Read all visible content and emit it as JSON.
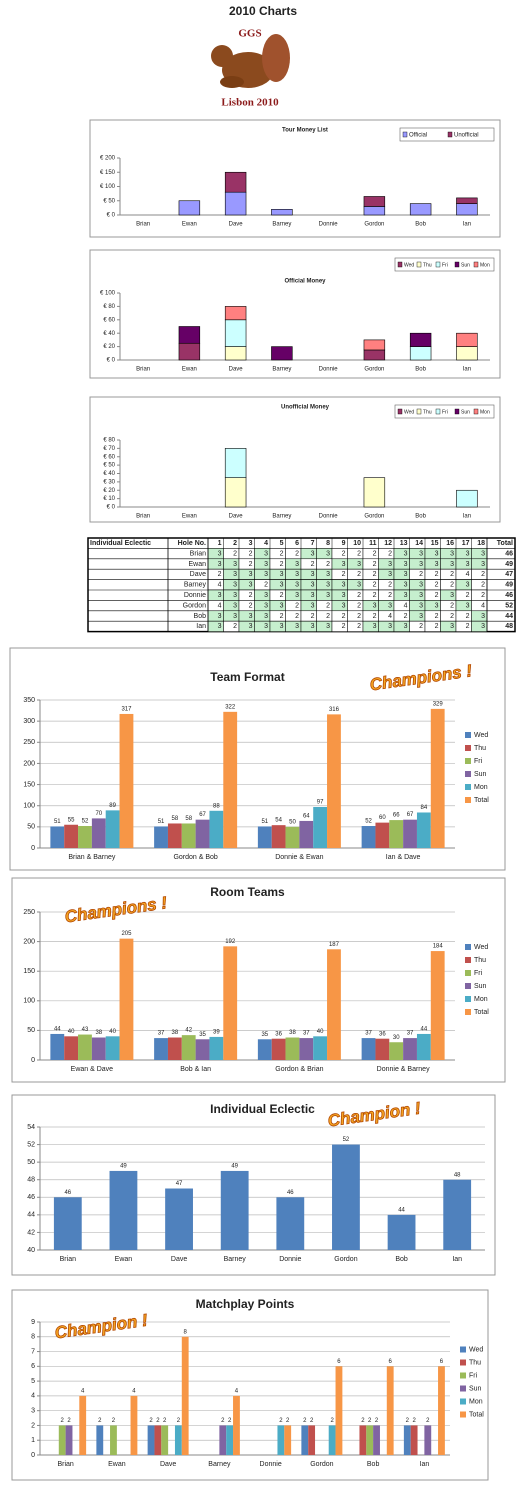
{
  "header": {
    "title": "2010 Charts",
    "logo_top": "GGS",
    "logo_bottom": "Lisbon 2010"
  },
  "chart_data": [
    {
      "type": "stacked",
      "title": "Tour Money List",
      "categories": [
        "Brian",
        "Ewan",
        "Dave",
        "Barney",
        "Donnie",
        "Gordon",
        "Bob",
        "Ian"
      ],
      "series": [
        {
          "name": "Official",
          "color": "#9999ff",
          "values": [
            0,
            50,
            80,
            20,
            0,
            30,
            40,
            40
          ]
        },
        {
          "name": "Unofficial",
          "color": "#993366",
          "values": [
            0,
            0,
            70,
            0,
            0,
            35,
            0,
            20
          ]
        }
      ],
      "ylim": [
        0,
        200
      ],
      "yticks": [
        {
          "value": 0,
          "label": "€ 0"
        },
        {
          "value": 50,
          "label": "€ 50"
        },
        {
          "value": 100,
          "label": "€ 100"
        },
        {
          "value": 150,
          "label": "€ 150"
        },
        {
          "value": 200,
          "label": "€ 200"
        }
      ],
      "grid": false,
      "legend": "top"
    },
    {
      "type": "stacked",
      "title": "Official Money",
      "categories": [
        "Brian",
        "Ewan",
        "Dave",
        "Barney",
        "Donnie",
        "Gordon",
        "Bob",
        "Ian"
      ],
      "series": [
        {
          "name": "Wed",
          "color": "#993366",
          "values": [
            0,
            25,
            0,
            0,
            0,
            15,
            0,
            0
          ]
        },
        {
          "name": "Thu",
          "color": "#ffffcc",
          "values": [
            0,
            0,
            20,
            0,
            0,
            0,
            0,
            20
          ]
        },
        {
          "name": "Fri",
          "color": "#ccffff",
          "values": [
            0,
            0,
            40,
            0,
            0,
            0,
            20,
            0
          ]
        },
        {
          "name": "Sun",
          "color": "#660066",
          "values": [
            0,
            25,
            0,
            20,
            0,
            0,
            20,
            0
          ]
        },
        {
          "name": "Mon",
          "color": "#ff8080",
          "values": [
            0,
            0,
            20,
            0,
            0,
            15,
            0,
            20
          ]
        }
      ],
      "ylim": [
        0,
        100
      ],
      "yticks": [
        {
          "value": 0,
          "label": "€ 0"
        },
        {
          "value": 20,
          "label": "€ 20"
        },
        {
          "value": 40,
          "label": "€ 40"
        },
        {
          "value": 60,
          "label": "€ 60"
        },
        {
          "value": 80,
          "label": "€ 80"
        },
        {
          "value": 100,
          "label": "€ 100"
        }
      ],
      "grid": false,
      "legend": "top"
    },
    {
      "type": "stacked",
      "title": "Unofficial Money",
      "categories": [
        "Brian",
        "Ewan",
        "Dave",
        "Barney",
        "Donnie",
        "Gordon",
        "Bob",
        "Ian"
      ],
      "series": [
        {
          "name": "Wed",
          "color": "#993366",
          "values": [
            0,
            0,
            0,
            0,
            0,
            0,
            0,
            0
          ]
        },
        {
          "name": "Thu",
          "color": "#ffffcc",
          "values": [
            0,
            0,
            35,
            0,
            0,
            35,
            0,
            0
          ]
        },
        {
          "name": "Fri",
          "color": "#ccffff",
          "values": [
            0,
            0,
            35,
            0,
            0,
            0,
            0,
            20
          ]
        },
        {
          "name": "Sun",
          "color": "#660066",
          "values": [
            0,
            0,
            0,
            0,
            0,
            0,
            0,
            0
          ]
        },
        {
          "name": "Mon",
          "color": "#ff8080",
          "values": [
            0,
            0,
            0,
            0,
            0,
            0,
            0,
            0
          ]
        }
      ],
      "ylim": [
        0,
        80
      ],
      "yticks": [
        {
          "value": 0,
          "label": "€ 0"
        },
        {
          "value": 10,
          "label": "€ 10"
        },
        {
          "value": 20,
          "label": "€ 20"
        },
        {
          "value": 30,
          "label": "€ 30"
        },
        {
          "value": 40,
          "label": "€ 40"
        },
        {
          "value": 50,
          "label": "€ 50"
        },
        {
          "value": 60,
          "label": "€ 60"
        },
        {
          "value": 70,
          "label": "€ 70"
        },
        {
          "value": 80,
          "label": "€ 80"
        }
      ],
      "grid": false,
      "legend": "top"
    },
    {
      "type": "grouped",
      "title": "Team Format",
      "annotation": "Champions !",
      "categories": [
        "Brian & Barney",
        "Gordon & Bob",
        "Donnie & Ewan",
        "Ian & Dave"
      ],
      "series": [
        {
          "name": "Wed",
          "color": "#4f81bd",
          "values": [
            51,
            51,
            51,
            52
          ]
        },
        {
          "name": "Thu",
          "color": "#c0504d",
          "values": [
            55,
            58,
            54,
            60
          ]
        },
        {
          "name": "Fri",
          "color": "#9bbb59",
          "values": [
            52,
            58,
            50,
            66
          ]
        },
        {
          "name": "Sun",
          "color": "#8064a2",
          "values": [
            70,
            67,
            64,
            67
          ]
        },
        {
          "name": "Mon",
          "color": "#4bacc6",
          "values": [
            89,
            88,
            97,
            84
          ]
        },
        {
          "name": "Total",
          "color": "#f79646",
          "values": [
            317,
            322,
            316,
            329
          ]
        }
      ],
      "ylim": [
        0,
        350
      ],
      "yticks": [
        0,
        50,
        100,
        150,
        200,
        250,
        300,
        350
      ],
      "grid": true,
      "legend": "right",
      "data_labels": true
    },
    {
      "type": "grouped",
      "title": "Room Teams",
      "annotation": "Champions !",
      "categories": [
        "Ewan & Dave",
        "Bob & Ian",
        "Gordon & Brian",
        "Donnie & Barney"
      ],
      "series": [
        {
          "name": "Wed",
          "color": "#4f81bd",
          "values": [
            44,
            37,
            35,
            37
          ]
        },
        {
          "name": "Thu",
          "color": "#c0504d",
          "values": [
            40,
            38,
            36,
            36
          ]
        },
        {
          "name": "Fri",
          "color": "#9bbb59",
          "values": [
            43,
            42,
            38,
            30
          ]
        },
        {
          "name": "Sun",
          "color": "#8064a2",
          "values": [
            38,
            35,
            37,
            37
          ]
        },
        {
          "name": "Mon",
          "color": "#4bacc6",
          "values": [
            40,
            39,
            40,
            44
          ]
        },
        {
          "name": "Total",
          "color": "#f79646",
          "values": [
            205,
            192,
            187,
            184
          ]
        }
      ],
      "ylim": [
        0,
        250
      ],
      "yticks": [
        0,
        50,
        100,
        150,
        200,
        250
      ],
      "grid": true,
      "legend": "right",
      "data_labels": true
    },
    {
      "type": "bar",
      "title": "Individual Eclectic",
      "annotation": "Champion !",
      "categories": [
        "Brian",
        "Ewan",
        "Dave",
        "Barney",
        "Donnie",
        "Gordon",
        "Bob",
        "Ian"
      ],
      "values": [
        46,
        49,
        47,
        49,
        46,
        52,
        44,
        48
      ],
      "color": "#4f81bd",
      "ylim": [
        40,
        54
      ],
      "yticks": [
        40,
        42,
        44,
        46,
        48,
        50,
        52,
        54
      ],
      "grid": true,
      "data_labels": true
    },
    {
      "type": "grouped",
      "title": "Matchplay Points",
      "annotation": "Champion !",
      "categories": [
        "Brian",
        "Ewan",
        "Dave",
        "Barney",
        "Donnie",
        "Gordon",
        "Bob",
        "Ian"
      ],
      "series": [
        {
          "name": "Wed",
          "color": "#4f81bd",
          "values": [
            null,
            2,
            2,
            null,
            null,
            2,
            null,
            2
          ]
        },
        {
          "name": "Thu",
          "color": "#c0504d",
          "values": [
            null,
            null,
            2,
            null,
            null,
            2,
            2,
            2
          ]
        },
        {
          "name": "Fri",
          "color": "#9bbb59",
          "values": [
            2,
            2,
            2,
            null,
            null,
            null,
            2,
            null
          ]
        },
        {
          "name": "Sun",
          "color": "#8064a2",
          "values": [
            2,
            null,
            null,
            2,
            null,
            null,
            2,
            2
          ]
        },
        {
          "name": "Mon",
          "color": "#4bacc6",
          "values": [
            null,
            null,
            2,
            2,
            2,
            2,
            null,
            null
          ]
        },
        {
          "name": "Total",
          "color": "#f79646",
          "values": [
            4,
            4,
            8,
            4,
            2,
            6,
            6,
            6
          ]
        }
      ],
      "ylim": [
        0,
        9
      ],
      "yticks": [
        0,
        1,
        2,
        3,
        4,
        5,
        6,
        7,
        8,
        9
      ],
      "grid": true,
      "legend": "right",
      "data_labels": true
    }
  ],
  "table": {
    "title": "Individual Eclectic",
    "hole_header": "Hole No.",
    "holes": [
      1,
      2,
      3,
      4,
      5,
      6,
      7,
      8,
      9,
      10,
      11,
      12,
      13,
      14,
      15,
      16,
      17,
      18
    ],
    "total_header": "Total",
    "rows": [
      {
        "name": "Brian",
        "scores": [
          3,
          2,
          2,
          3,
          2,
          2,
          3,
          3,
          2,
          2,
          2,
          2,
          3,
          3,
          3,
          3,
          3,
          3
        ],
        "total": 46
      },
      {
        "name": "Ewan",
        "scores": [
          3,
          3,
          2,
          3,
          2,
          3,
          2,
          2,
          3,
          3,
          2,
          3,
          3,
          3,
          3,
          3,
          3,
          3
        ],
        "total": 49
      },
      {
        "name": "Dave",
        "scores": [
          2,
          3,
          3,
          3,
          3,
          3,
          3,
          3,
          2,
          2,
          2,
          3,
          3,
          2,
          2,
          2,
          4,
          2
        ],
        "total": 47
      },
      {
        "name": "Barney",
        "scores": [
          4,
          3,
          3,
          2,
          3,
          3,
          3,
          3,
          3,
          3,
          2,
          2,
          3,
          3,
          2,
          2,
          3,
          2
        ],
        "total": 49
      },
      {
        "name": "Donnie",
        "scores": [
          3,
          3,
          2,
          3,
          2,
          3,
          3,
          3,
          3,
          2,
          2,
          2,
          3,
          3,
          2,
          3,
          2,
          2
        ],
        "total": 46
      },
      {
        "name": "Gordon",
        "scores": [
          4,
          3,
          2,
          3,
          3,
          2,
          3,
          2,
          3,
          2,
          3,
          3,
          4,
          3,
          3,
          2,
          3,
          4
        ],
        "total": 52
      },
      {
        "name": "Bob",
        "scores": [
          3,
          3,
          3,
          3,
          2,
          2,
          2,
          2,
          2,
          2,
          2,
          4,
          2,
          3,
          2,
          2,
          2,
          3
        ],
        "total": 44
      },
      {
        "name": "Ian",
        "scores": [
          3,
          2,
          3,
          3,
          3,
          3,
          3,
          3,
          2,
          2,
          3,
          3,
          3,
          2,
          2,
          3,
          2,
          3
        ],
        "total": 48
      }
    ]
  }
}
